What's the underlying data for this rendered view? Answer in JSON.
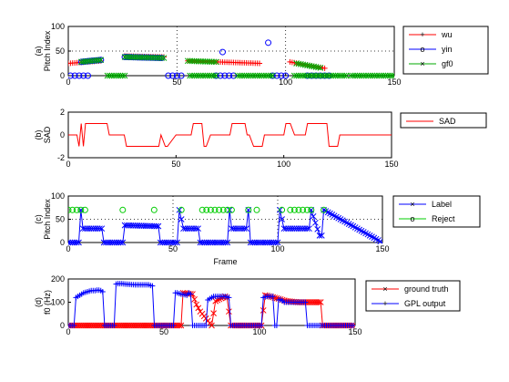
{
  "chart_data": [
    {
      "type": "scatter",
      "panel_label": "(a)",
      "ylabel": "Pitch Index",
      "xlim": [
        0,
        150
      ],
      "ylim": [
        0,
        100
      ],
      "xticks": [
        0,
        50,
        100,
        150
      ],
      "yticks": [
        0,
        50,
        100
      ],
      "grid": true,
      "legend_position": "outside-right",
      "series": [
        {
          "name": "wu",
          "marker": "plus",
          "color": "#ff0000",
          "segments": [
            {
              "x": [
                0,
                15
              ],
              "y": [
                25,
                30
              ]
            },
            {
              "x": [
                26,
                44
              ],
              "y": [
                40,
                38
              ]
            },
            {
              "x": [
                55,
                88
              ],
              "y": [
                30,
                25
              ]
            },
            {
              "x": [
                102,
                118
              ],
              "y": [
                28,
                15
              ]
            }
          ]
        },
        {
          "name": "yin",
          "marker": "circle",
          "color": "#0000ff",
          "points": [
            [
              1,
              0
            ],
            [
              3,
              0
            ],
            [
              5,
              0
            ],
            [
              7,
              0
            ],
            [
              9,
              0
            ],
            [
              46,
              0
            ],
            [
              48,
              0
            ],
            [
              50,
              0
            ],
            [
              52,
              0
            ],
            [
              68,
              0
            ],
            [
              70,
              0
            ],
            [
              72,
              0
            ],
            [
              74,
              0
            ],
            [
              76,
              0
            ],
            [
              94,
              0
            ],
            [
              96,
              0
            ],
            [
              98,
              0
            ],
            [
              100,
              0
            ],
            [
              110,
              0
            ],
            [
              112,
              0
            ],
            [
              114,
              0
            ],
            [
              116,
              0
            ],
            [
              118,
              0
            ],
            [
              120,
              0
            ]
          ],
          "outliers": [
            [
              71,
              48
            ],
            [
              92,
              67
            ]
          ],
          "segments": [
            {
              "x": [
                6,
                15
              ],
              "y": [
                28,
                32
              ]
            },
            {
              "x": [
                26,
                43
              ],
              "y": [
                38,
                36
              ]
            }
          ]
        },
        {
          "name": "gf0",
          "marker": "x",
          "color": "#00aa00",
          "segments": [
            {
              "x": [
                6,
                15
              ],
              "y": [
                28,
                32
              ]
            },
            {
              "x": [
                26,
                44
              ],
              "y": [
                38,
                36
              ]
            },
            {
              "x": [
                55,
                68
              ],
              "y": [
                30,
                28
              ]
            },
            {
              "x": [
                105,
                116
              ],
              "y": [
                25,
                16
              ]
            }
          ],
          "zero_runs": [
            [
              18,
              26
            ],
            [
              56,
              68
            ],
            [
              78,
              94
            ],
            [
              104,
              128
            ],
            [
              130,
              150
            ]
          ]
        }
      ]
    },
    {
      "type": "line",
      "panel_label": "(b)",
      "ylabel": "SAD",
      "xlim": [
        0,
        150
      ],
      "ylim": [
        -2,
        2
      ],
      "xticks": [
        0,
        50,
        100,
        150
      ],
      "yticks": [
        -2,
        0,
        2
      ],
      "grid": false,
      "legend_position": "outside-right",
      "series": [
        {
          "name": "SAD",
          "color": "#ff0000",
          "x": [
            0,
            4,
            5,
            6,
            7,
            8,
            10,
            18,
            19,
            26,
            27,
            42,
            43,
            45,
            46,
            50,
            52,
            57,
            58,
            62,
            63,
            64,
            66,
            75,
            76,
            82,
            83,
            84,
            86,
            90,
            91,
            100,
            101,
            103,
            105,
            110,
            111,
            120,
            121,
            125,
            126,
            130,
            131,
            150
          ],
          "y": [
            0,
            0,
            -1,
            1,
            -1,
            1,
            1,
            1,
            0,
            0,
            -1,
            -1,
            0,
            -1,
            -1,
            0,
            0,
            0,
            1,
            1,
            -1,
            -1,
            0,
            0,
            1,
            1,
            0,
            0,
            -1,
            -1,
            0,
            0,
            1,
            1,
            0,
            0,
            1,
            1,
            -1,
            -1,
            0,
            0,
            0,
            0
          ]
        }
      ]
    },
    {
      "type": "line",
      "panel_label": "(c)",
      "ylabel": "Pitch Index",
      "xlabel": "Frame",
      "xlim": [
        0,
        150
      ],
      "ylim": [
        0,
        100
      ],
      "xticks": [
        0,
        50,
        100,
        150
      ],
      "yticks": [
        0,
        50,
        100
      ],
      "grid": true,
      "legend_position": "outside-right",
      "series": [
        {
          "name": "Label",
          "marker": "x",
          "color": "#0000ff",
          "x": [
            0,
            5,
            6,
            7,
            8,
            16,
            17,
            26,
            27,
            43,
            44,
            45,
            46,
            52,
            53,
            55,
            56,
            62,
            63,
            64,
            76,
            77,
            78,
            85,
            86,
            87,
            100,
            101,
            103,
            104,
            105,
            115,
            116,
            120,
            121,
            122,
            150
          ],
          "y": [
            0,
            0,
            70,
            30,
            30,
            30,
            0,
            0,
            37,
            35,
            0,
            0,
            0,
            0,
            70,
            30,
            30,
            30,
            0,
            0,
            0,
            70,
            30,
            30,
            70,
            0,
            0,
            70,
            30,
            30,
            30,
            30,
            70,
            15,
            15,
            70,
            0
          ]
        },
        {
          "name": "Reject",
          "marker": "circle",
          "color": "#00cc00",
          "points": [
            [
              0,
              70
            ],
            [
              2,
              70
            ],
            [
              4,
              70
            ],
            [
              6,
              70
            ],
            [
              8,
              70
            ],
            [
              26,
              70
            ],
            [
              41,
              70
            ],
            [
              54,
              70
            ],
            [
              64,
              70
            ],
            [
              66,
              70
            ],
            [
              68,
              70
            ],
            [
              70,
              70
            ],
            [
              72,
              70
            ],
            [
              74,
              70
            ],
            [
              76,
              70
            ],
            [
              78,
              70
            ],
            [
              86,
              70
            ],
            [
              90,
              70
            ],
            [
              102,
              70
            ],
            [
              106,
              70
            ],
            [
              108,
              70
            ],
            [
              110,
              70
            ],
            [
              112,
              70
            ],
            [
              114,
              70
            ],
            [
              116,
              70
            ],
            [
              122,
              70
            ]
          ]
        }
      ]
    },
    {
      "type": "line",
      "panel_label": "(d)",
      "ylabel": "f0 (Hz)",
      "xlim": [
        0,
        150
      ],
      "ylim": [
        0,
        200
      ],
      "xticks": [
        0,
        50,
        100,
        150
      ],
      "yticks": [
        0,
        100,
        200
      ],
      "grid": false,
      "legend_position": "outside-right",
      "series": [
        {
          "name": "ground truth",
          "marker": "x",
          "color": "#ff0000",
          "x": [
            0,
            18,
            19,
            24,
            25,
            45,
            46,
            59,
            60,
            65,
            67,
            69,
            75,
            77,
            82,
            83,
            85,
            87,
            100,
            101,
            103,
            110,
            114,
            120,
            125,
            132,
            133,
            150
          ],
          "y": [
            0,
            0,
            0,
            0,
            0,
            0,
            0,
            0,
            140,
            135,
            90,
            60,
            0,
            105,
            125,
            120,
            0,
            0,
            0,
            0,
            130,
            115,
            105,
            100,
            100,
            100,
            0,
            0
          ]
        },
        {
          "name": "GPL output",
          "marker": "plus",
          "color": "#0000ff",
          "x": [
            0,
            3,
            4,
            8,
            10,
            12,
            14,
            15,
            16,
            17,
            18,
            19,
            23,
            24,
            25,
            26,
            28,
            30,
            35,
            42,
            43,
            44,
            45,
            47,
            55,
            56,
            57,
            59,
            62,
            63,
            64,
            65,
            72,
            73,
            75,
            76,
            82,
            84,
            85,
            100,
            101,
            102,
            104,
            107,
            108,
            109,
            110,
            111,
            113,
            115,
            118,
            120,
            122,
            123,
            124,
            125,
            150
          ],
          "y": [
            0,
            0,
            120,
            140,
            145,
            150,
            150,
            152,
            152,
            150,
            145,
            0,
            0,
            0,
            178,
            180,
            180,
            178,
            175,
            175,
            172,
            170,
            0,
            0,
            0,
            140,
            140,
            135,
            130,
            140,
            135,
            0,
            0,
            110,
            120,
            125,
            125,
            120,
            0,
            0,
            0,
            120,
            125,
            125,
            0,
            0,
            110,
            112,
            100,
            100,
            100,
            100,
            100,
            100,
            100,
            0,
            0
          ]
        }
      ]
    }
  ],
  "legends": [
    {
      "items": [
        {
          "marker_text": "+",
          "label": "wu",
          "color": "#ff0000"
        },
        {
          "marker_text": "o",
          "label": "yin",
          "color": "#0000ff"
        },
        {
          "marker_text": "×",
          "label": "gf0",
          "color": "#00aa00"
        }
      ]
    },
    {
      "items": [
        {
          "marker_text": "",
          "label": "SAD",
          "color": "#ff0000"
        }
      ]
    },
    {
      "items": [
        {
          "marker_text": "×",
          "label": "Label",
          "color": "#0000ff"
        },
        {
          "marker_text": "o",
          "label": "Reject",
          "color": "#00cc00"
        }
      ]
    },
    {
      "items": [
        {
          "marker_text": "×",
          "label": "ground truth",
          "color": "#ff0000"
        },
        {
          "marker_text": "+",
          "label": "GPL output",
          "color": "#0000ff"
        }
      ]
    }
  ]
}
